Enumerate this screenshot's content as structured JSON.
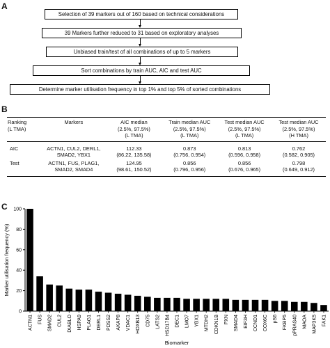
{
  "panel_a": {
    "label": "A",
    "steps": [
      "Selection of 39 markers out of 160 based on technical considerations",
      "39 Markers further reduced to 31 based on exploratory analyses",
      "Unbiased train/test of all combinations of up to 5 markers",
      "Sort combinations by train AUC, AIC and test AUC",
      "Determine marker utilisation frequency in top 1% and top 5% of sorted combinations"
    ]
  },
  "panel_b": {
    "label": "B",
    "headers": [
      "Ranking\n(L TMA)",
      "Markers",
      "AIC median\n(2.5%, 97.5%)\n(L TMA)",
      "Train median AUC\n(2.5%, 97.5%)\n(L TMA)",
      "Test median AUC\n(2.5%, 97.5%)\n(L TMA)",
      "Test median AUC\n(2.5%, 97.5%)\n(H TMA)"
    ],
    "rows": [
      {
        "ranking": "AIC",
        "markers": "ACTN1, CUL2, DERL1,\nSMAD2, YBX1",
        "aic": "112.33\n(86.22, 135.58)",
        "train_auc": "0.873\n(0.756, 0.954)",
        "test_auc_l": "0.813\n(0.596, 0.958)",
        "test_auc_h": "0.762\n(0.582, 0.905)"
      },
      {
        "ranking": "Test",
        "markers": "ACTN1, FUS, PLAG1,\nSMAD2, SMAD4",
        "aic": "124.95\n(98.61, 150.52)",
        "train_auc": "0.856\n(0.796, 0.956)",
        "test_auc_l": "0.856\n(0.676, 0.965)",
        "test_auc_h": "0.798\n(0.649, 0.912)"
      }
    ]
  },
  "panel_c": {
    "label": "C"
  },
  "chart_data": {
    "type": "bar",
    "title": "",
    "xlabel": "Biomarker",
    "ylabel": "Marker utilisation frequency (%)",
    "ylim": [
      0,
      100
    ],
    "yticks": [
      0,
      20,
      40,
      60,
      80,
      100
    ],
    "grid": false,
    "bar_color": "#000000",
    "categories": [
      "ACTN1",
      "FUS",
      "SMAD2",
      "CUL2",
      "DIABLO",
      "HSPA9",
      "PLAG1",
      "DERL1",
      "PDSS2",
      "AKAP8",
      "VDAC1",
      "HOXB13",
      "CD75",
      "LATS2",
      "HSD17B4",
      "DEC1",
      "LMO7",
      "YBX1",
      "MTDH2",
      "CDKN1B",
      "PXN",
      "SMAD4",
      "EIF3H",
      "CCND1",
      "COX6C",
      "pS6",
      "FKBP5",
      "pPRAS40",
      "MAOA",
      "MAP3K5",
      "FAK1"
    ],
    "values": [
      100,
      34,
      26,
      25,
      22,
      21,
      21,
      19,
      18,
      17,
      16,
      15,
      14,
      13,
      13,
      13,
      12,
      12,
      12,
      12,
      12,
      11,
      11,
      11,
      11,
      10,
      10,
      9,
      9,
      8,
      6
    ]
  }
}
